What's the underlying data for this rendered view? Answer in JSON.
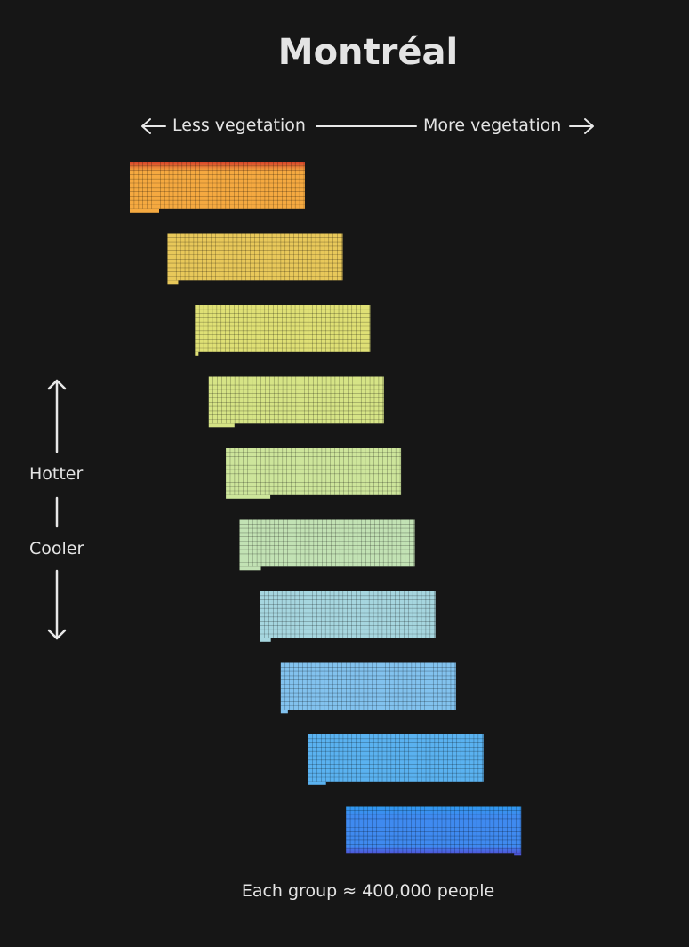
{
  "title": "Montréal",
  "axis": {
    "less_label": "Less vegetation",
    "more_label": "More vegetation",
    "hotter_label": "Hotter",
    "cooler_label": "Cooler"
  },
  "footer": "Each group ≈ 400,000 people",
  "chart_data": {
    "type": "waffle",
    "title": "Montréal",
    "note": "Each group ≈ 400,000 people",
    "x_axis": "Less vegetation → More vegetation",
    "y_axis": "Hotter → Cooler",
    "groups": [
      {
        "rank": 1,
        "vegetation_offset": 0.0,
        "color": "#f5a940",
        "top_color": "#d8452a"
      },
      {
        "rank": 2,
        "vegetation_offset": 0.11,
        "color": "#e8c85a",
        "top_color": "#e8c85a"
      },
      {
        "rank": 3,
        "vegetation_offset": 0.19,
        "color": "#dfe075",
        "top_color": "#dfe075"
      },
      {
        "rank": 4,
        "vegetation_offset": 0.23,
        "color": "#d6e486",
        "top_color": "#d6e486"
      },
      {
        "rank": 5,
        "vegetation_offset": 0.28,
        "color": "#cde59b",
        "top_color": "#cde59b"
      },
      {
        "rank": 6,
        "vegetation_offset": 0.32,
        "color": "#c2e2b4",
        "top_color": "#c2e2b4"
      },
      {
        "rank": 7,
        "vegetation_offset": 0.38,
        "color": "#a6d6df",
        "top_color": "#a6d6df"
      },
      {
        "rank": 8,
        "vegetation_offset": 0.44,
        "color": "#82c2ee",
        "top_color": "#82c2ee"
      },
      {
        "rank": 9,
        "vegetation_offset": 0.52,
        "color": "#5ab2f0",
        "top_color": "#5ab2f0"
      },
      {
        "rank": 10,
        "vegetation_offset": 0.63,
        "color": "#3f8af0",
        "top_color": "#2e9bef",
        "bottom_color": "#4c56d8"
      }
    ]
  }
}
